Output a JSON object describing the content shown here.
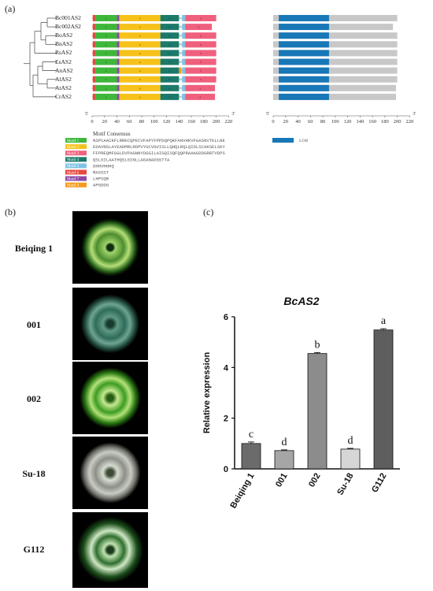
{
  "panel_a": {
    "label": "(a)",
    "genes": [
      "Bc001AS2",
      "Bc002AS2",
      "BoAS2",
      "BnAS2",
      "RsAS2",
      "EsAS2",
      "AnAS2",
      "AlAS2",
      "AtAS2",
      "CrAS2"
    ],
    "axis_ticks": [
      "0",
      "20",
      "40",
      "60",
      "80",
      "100",
      "120",
      "140",
      "160",
      "180",
      "200",
      "220"
    ],
    "end_left": "5'",
    "end_right": "3'",
    "legend_title": "Motif Consensus",
    "motifs": [
      {
        "name": "Motif 1",
        "color": "#3fb73a",
        "seq": "NSPCAACKFLRRKCQPECVFAPYFPPDQPQKFANVHKVFGASNVTKLLNE"
      },
      {
        "name": "Motif 2",
        "color": "#f6c21a",
        "seq": "EDAVNSLAYEADMRLRDPVYGCVGVISLLQHQLRQLQIDLSCAKSELSKY"
      },
      {
        "name": "Motif 3",
        "color": "#f0607e",
        "seq": "FFPREQMFGGLDVPAGNNYDGGILAIGQISQFQQPRAAAGDDGRRTVDPS"
      },
      {
        "name": "Motif 4",
        "color": "#1c7a6b",
        "seq": "QSLGILAATHQSLGINLLAGANADGSTTA"
      },
      {
        "name": "Motif 5",
        "color": "#7ec3e4",
        "seq": "DHHVHHHQ"
      },
      {
        "name": "Motif 6",
        "color": "#e7473d",
        "seq": "MASSST"
      },
      {
        "name": "Motif 7",
        "color": "#8d4aa6",
        "seq": "LHPSQR"
      },
      {
        "name": "Motif 8",
        "color": "#f49a1a",
        "seq": "APGDDG"
      }
    ],
    "lob_label": "LOB",
    "lob_color": "#1877b7"
  },
  "panel_b": {
    "label": "(b)",
    "samples": [
      "Beiqing 1",
      "001",
      "002",
      "Su-18",
      "G112"
    ]
  },
  "panel_c": {
    "label": "(c)"
  },
  "chart_data": {
    "type": "bar",
    "title": "BcAS2",
    "ylabel": "Relative expression",
    "xlabel": "",
    "categories": [
      "Beiqing 1",
      "001",
      "002",
      "Su-18",
      "G112"
    ],
    "values": [
      1.0,
      0.72,
      4.55,
      0.78,
      5.48
    ],
    "errors": [
      0.06,
      0.03,
      0.04,
      0.03,
      0.05
    ],
    "letters": [
      "c",
      "d",
      "b",
      "d",
      "a"
    ],
    "colors": [
      "#6b6b6b",
      "#a6a6a6",
      "#8c8c8c",
      "#d6d6d6",
      "#5e5e5e"
    ],
    "ylim": [
      0,
      6
    ],
    "yticks": [
      0,
      2,
      4,
      6
    ],
    "grid": false
  }
}
